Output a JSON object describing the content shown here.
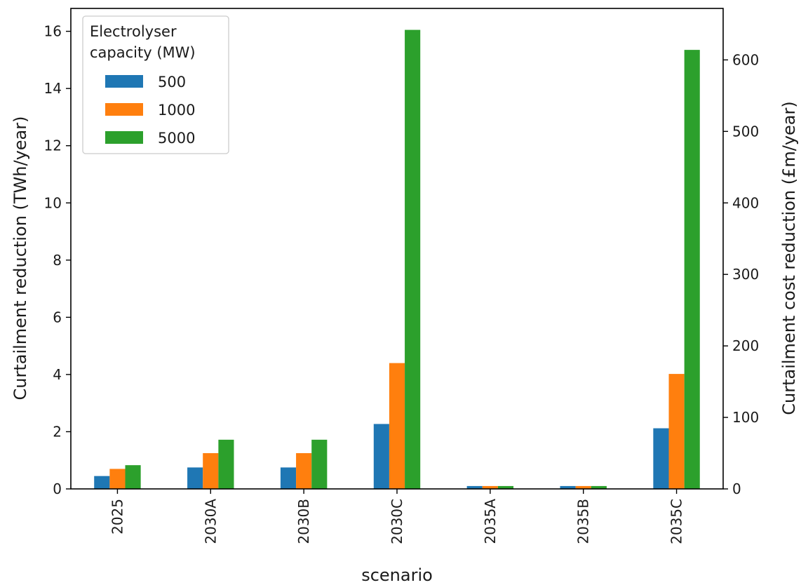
{
  "chart_data": {
    "type": "bar",
    "xlabel": "scenario",
    "ylabel": "Curtailment reduction (TWh/year)",
    "ylabel_right": "Curtailment cost reduction (£m/year)",
    "categories": [
      "2025",
      "2030A",
      "2030B",
      "2030C",
      "2035A",
      "2035B",
      "2035C"
    ],
    "series": [
      {
        "name": "500",
        "color": "#1f77b4",
        "values": [
          0.45,
          0.75,
          0.75,
          2.27,
          0.1,
          0.1,
          2.12
        ]
      },
      {
        "name": "1000",
        "color": "#ff7f0e",
        "values": [
          0.7,
          1.25,
          1.25,
          4.4,
          0.1,
          0.1,
          4.02
        ]
      },
      {
        "name": "5000",
        "color": "#2ca02c",
        "values": [
          0.83,
          1.72,
          1.72,
          16.05,
          0.1,
          0.1,
          15.35
        ]
      }
    ],
    "ylim": [
      0,
      16.8
    ],
    "yticks": [
      0,
      2,
      4,
      6,
      8,
      10,
      12,
      14,
      16
    ],
    "ylim_right": [
      0,
      672
    ],
    "yticks_right": [
      0,
      100,
      200,
      300,
      400,
      500,
      600
    ],
    "legend": {
      "title_lines": [
        "Electrolyser",
        "capacity (MW)"
      ],
      "position": "top-left"
    },
    "grid": false
  }
}
